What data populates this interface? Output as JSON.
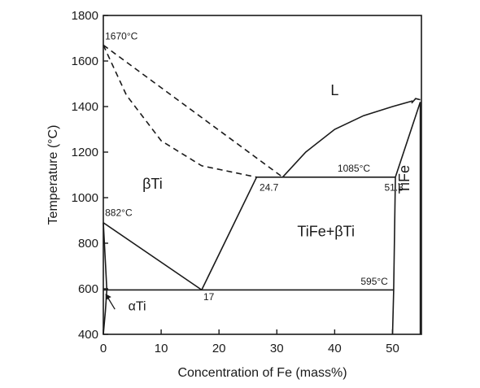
{
  "chart_data": {
    "type": "phase-diagram",
    "xlabel": "Concentration of Fe (mass%)",
    "ylabel": "Temperature (°C)",
    "xlim": [
      0,
      55
    ],
    "ylim": [
      400,
      1800
    ],
    "xticks": [
      0,
      10,
      20,
      30,
      40,
      50
    ],
    "yticks": [
      400,
      600,
      800,
      1000,
      1200,
      1400,
      1600,
      1800
    ],
    "regions": [
      {
        "label": "L",
        "x": 40,
        "y": 1450
      },
      {
        "label": "βTi",
        "x": 8.5,
        "y": 1040
      },
      {
        "label": "TiFe+βTi",
        "x": 38.5,
        "y": 830
      },
      {
        "label": "TiFe",
        "x": 52.9,
        "y": 1080,
        "rotated": true
      }
    ],
    "annotations": [
      {
        "text": "1670°C",
        "x": 0.3,
        "y": 1695
      },
      {
        "text": "882°C",
        "x": 0.3,
        "y": 920
      },
      {
        "text": "1085°C",
        "x": 40.5,
        "y": 1115
      },
      {
        "text": "595°C",
        "x": 44.5,
        "y": 618
      },
      {
        "text": "24.7",
        "x": 27,
        "y": 1030
      },
      {
        "text": "51.3",
        "x": 48.6,
        "y": 1030
      },
      {
        "text": "17",
        "x": 17.3,
        "y": 550
      },
      {
        "text": "αTi",
        "x": 4.3,
        "y": 505
      }
    ],
    "curves": [
      {
        "style": "dashed",
        "points": [
          [
            0,
            1670
          ],
          [
            31,
            1090
          ]
        ]
      },
      {
        "style": "dashed",
        "points": [
          [
            0,
            1670
          ],
          [
            4,
            1450
          ],
          [
            10,
            1250
          ],
          [
            17,
            1140
          ],
          [
            26.5,
            1090
          ]
        ]
      },
      {
        "style": "solid",
        "points": [
          [
            31,
            1090
          ],
          [
            35,
            1200
          ],
          [
            40,
            1300
          ],
          [
            45,
            1360
          ],
          [
            50,
            1400
          ],
          [
            53.5,
            1425
          ]
        ]
      },
      {
        "style": "solid",
        "points": [
          [
            53.3,
            1415
          ],
          [
            54,
            1435
          ],
          [
            54.8,
            1430
          ]
        ]
      },
      {
        "style": "solid",
        "points": [
          [
            26.5,
            1090
          ],
          [
            50.5,
            1090
          ]
        ]
      },
      {
        "style": "solid",
        "points": [
          [
            26.5,
            1090
          ],
          [
            17,
            595
          ]
        ]
      },
      {
        "style": "solid",
        "points": [
          [
            0,
            890
          ],
          [
            17,
            595
          ]
        ]
      },
      {
        "style": "solid",
        "points": [
          [
            0,
            595
          ],
          [
            50.2,
            595
          ]
        ]
      },
      {
        "style": "solid",
        "points": [
          [
            54.8,
            1420
          ],
          [
            50.5,
            1090
          ]
        ]
      },
      {
        "style": "solid",
        "points": [
          [
            50.5,
            1090
          ],
          [
            50.2,
            595
          ],
          [
            50,
            400
          ]
        ]
      },
      {
        "style": "solid",
        "points": [
          [
            54.8,
            1420
          ],
          [
            54.8,
            400
          ]
        ]
      },
      {
        "style": "solid",
        "points": [
          [
            0,
            890
          ],
          [
            0.4,
            700
          ],
          [
            0.6,
            595
          ],
          [
            0.35,
            500
          ],
          [
            0,
            400
          ]
        ]
      }
    ],
    "arrow": {
      "from": [
        2,
        510
      ],
      "to": [
        0.45,
        575
      ]
    }
  }
}
